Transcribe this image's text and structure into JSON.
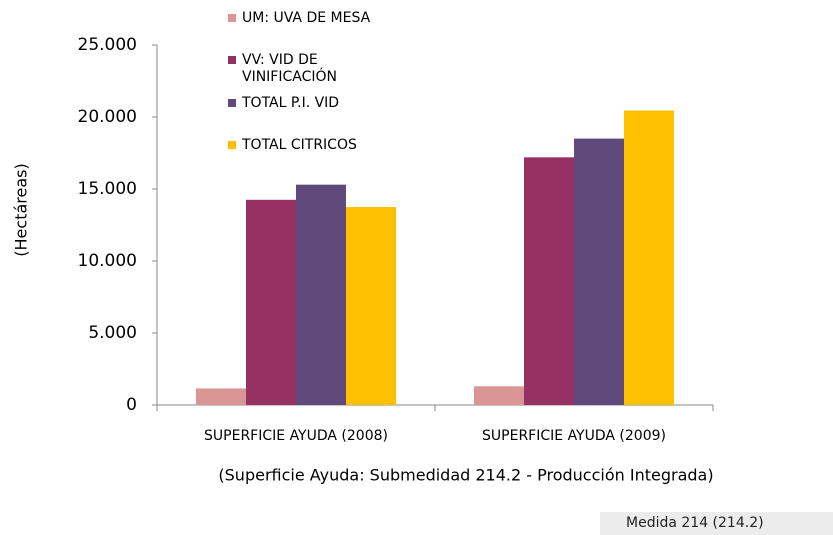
{
  "chart_data": {
    "type": "bar",
    "categories": [
      "SUPERFICIE AYUDA (2008)",
      "SUPERFICIE AYUDA (2009)"
    ],
    "series": [
      {
        "name": "UM: UVA DE MESA",
        "color": "#d99694",
        "values": [
          1150,
          1300
        ]
      },
      {
        "name": "VV: VID DE VINIFICACIÓN",
        "color": "#953163",
        "values": [
          14250,
          17200
        ]
      },
      {
        "name": "TOTAL P.I. VID",
        "color": "#604a7b",
        "values": [
          15300,
          18500
        ]
      },
      {
        "name": "TOTAL CITRICOS",
        "color": "#ffc000",
        "values": [
          13750,
          20450
        ]
      }
    ],
    "ylabel": "(Hectáreas)",
    "xlabel": "(Superficie Ayuda:  Submedidad 214.2  - Producción Integrada)",
    "footer": "Medida 214 (214.2)",
    "ylim": [
      0,
      25000
    ],
    "yticks": [
      0,
      {
        "value": 5000,
        "label": "5.000"
      },
      {
        "value": 10000,
        "label": "10.000"
      },
      {
        "value": 15000,
        "label": "15.000"
      },
      {
        "value": 20000,
        "label": "20.000"
      },
      {
        "value": 25000,
        "label": "25.000"
      }
    ],
    "grid": false
  }
}
